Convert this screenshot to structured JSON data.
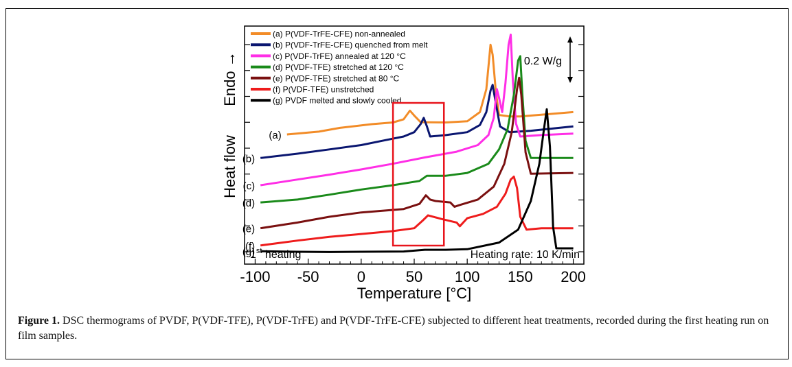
{
  "chart_data": {
    "type": "line",
    "xlabel": "Temperature [°C]",
    "ylabel": "Heat flow",
    "ylabel_arrow": "Endo →",
    "xlim": [
      -110,
      210
    ],
    "xticks": [
      -100,
      -50,
      0,
      50,
      100,
      150,
      200
    ],
    "y_tick_count": 9,
    "grid": false,
    "legend_position": "top-left",
    "scale_bar_label": "0.2 W/g",
    "scale_bar_value": 0.2,
    "annotation_left_main": "1",
    "annotation_left_sup": "st",
    "annotation_left_rest": " heating",
    "annotation_right": "Heating rate: 10 K/min",
    "highlight_box_x": [
      30,
      78
    ],
    "series": [
      {
        "name": "(a) P(VDF-TrFE-CFE) non-annealed",
        "tag": "(a)",
        "color": "#f28c28",
        "points": [
          [
            -70,
            7.82
          ],
          [
            -40,
            7.92
          ],
          [
            -20,
            8.05
          ],
          [
            10,
            8.18
          ],
          [
            30,
            8.24
          ],
          [
            40,
            8.35
          ],
          [
            46,
            8.65
          ],
          [
            50,
            8.48
          ],
          [
            56,
            8.25
          ],
          [
            80,
            8.24
          ],
          [
            100,
            8.28
          ],
          [
            112,
            8.6
          ],
          [
            118,
            9.4
          ],
          [
            122,
            10.95
          ],
          [
            124,
            10.6
          ],
          [
            127,
            9.3
          ],
          [
            130,
            8.5
          ],
          [
            140,
            8.45
          ],
          [
            150,
            8.45
          ],
          [
            200,
            8.6
          ]
        ]
      },
      {
        "name": "(b) P(VDF-TrFE-CFE) quenched from melt",
        "tag": "(b)",
        "color": "#0a1670",
        "points": [
          [
            -95,
            7.0
          ],
          [
            -60,
            7.15
          ],
          [
            -30,
            7.3
          ],
          [
            0,
            7.45
          ],
          [
            20,
            7.6
          ],
          [
            40,
            7.75
          ],
          [
            50,
            7.9
          ],
          [
            56,
            8.18
          ],
          [
            59,
            8.4
          ],
          [
            62,
            8.1
          ],
          [
            65,
            7.75
          ],
          [
            80,
            7.8
          ],
          [
            100,
            7.9
          ],
          [
            112,
            8.15
          ],
          [
            118,
            8.6
          ],
          [
            122,
            9.35
          ],
          [
            124,
            9.55
          ],
          [
            127,
            8.9
          ],
          [
            131,
            8.1
          ],
          [
            140,
            7.9
          ],
          [
            160,
            7.95
          ],
          [
            200,
            8.1
          ]
        ]
      },
      {
        "name": "(c) P(VDF-TrFE) annealed at 120 °C",
        "tag": "(c)",
        "color": "#ff2ee6",
        "points": [
          [
            -95,
            6.05
          ],
          [
            -60,
            6.25
          ],
          [
            -30,
            6.42
          ],
          [
            0,
            6.6
          ],
          [
            30,
            6.8
          ],
          [
            60,
            7.02
          ],
          [
            90,
            7.22
          ],
          [
            110,
            7.45
          ],
          [
            120,
            7.8
          ],
          [
            125,
            8.4
          ],
          [
            128,
            9.4
          ],
          [
            130,
            9.1
          ],
          [
            133,
            8.6
          ],
          [
            136,
            9.6
          ],
          [
            139,
            10.95
          ],
          [
            141,
            11.3
          ],
          [
            143,
            9.7
          ],
          [
            146,
            8.2
          ],
          [
            150,
            7.75
          ],
          [
            170,
            7.8
          ],
          [
            200,
            7.85
          ]
        ]
      },
      {
        "name": "(d) P(VDF-TFE) stretched at 120 °C",
        "tag": "(d)",
        "color": "#1a8a1a",
        "points": [
          [
            -95,
            5.45
          ],
          [
            -60,
            5.55
          ],
          [
            -30,
            5.72
          ],
          [
            0,
            5.9
          ],
          [
            30,
            6.05
          ],
          [
            55,
            6.2
          ],
          [
            62,
            6.38
          ],
          [
            80,
            6.38
          ],
          [
            100,
            6.48
          ],
          [
            120,
            6.8
          ],
          [
            130,
            7.3
          ],
          [
            138,
            8.0
          ],
          [
            144,
            9.2
          ],
          [
            148,
            10.4
          ],
          [
            150,
            10.55
          ],
          [
            152,
            9.2
          ],
          [
            155,
            7.6
          ],
          [
            160,
            7.0
          ],
          [
            200,
            7.0
          ]
        ]
      },
      {
        "name": "(e) P(VDF-TFE) stretched at 80 °C",
        "tag": "(e)",
        "color": "#7a1010",
        "points": [
          [
            -95,
            4.55
          ],
          [
            -60,
            4.75
          ],
          [
            -30,
            4.95
          ],
          [
            0,
            5.1
          ],
          [
            40,
            5.22
          ],
          [
            55,
            5.4
          ],
          [
            61,
            5.7
          ],
          [
            65,
            5.55
          ],
          [
            70,
            5.5
          ],
          [
            84,
            5.45
          ],
          [
            88,
            5.3
          ],
          [
            92,
            5.35
          ],
          [
            110,
            5.55
          ],
          [
            125,
            6.0
          ],
          [
            135,
            6.8
          ],
          [
            142,
            7.9
          ],
          [
            147,
            9.4
          ],
          [
            149,
            9.8
          ],
          [
            151,
            9.2
          ],
          [
            155,
            7.2
          ],
          [
            160,
            6.45
          ],
          [
            200,
            6.48
          ]
        ]
      },
      {
        "name": "(f) P(VDF-TFE) unstretched",
        "tag": "(f)",
        "color": "#ee1c1c",
        "points": [
          [
            -95,
            3.95
          ],
          [
            -60,
            4.12
          ],
          [
            -30,
            4.25
          ],
          [
            0,
            4.35
          ],
          [
            30,
            4.45
          ],
          [
            50,
            4.55
          ],
          [
            58,
            4.82
          ],
          [
            63,
            5.0
          ],
          [
            75,
            4.88
          ],
          [
            90,
            4.75
          ],
          [
            93,
            4.62
          ],
          [
            100,
            4.9
          ],
          [
            115,
            5.05
          ],
          [
            128,
            5.3
          ],
          [
            136,
            5.75
          ],
          [
            141,
            6.25
          ],
          [
            144,
            6.35
          ],
          [
            147,
            5.95
          ],
          [
            150,
            4.95
          ],
          [
            156,
            4.5
          ],
          [
            170,
            4.55
          ],
          [
            200,
            4.55
          ]
        ]
      },
      {
        "name": "(g) PVDF melted and slowly cooled",
        "tag": "(g)",
        "color": "#000000",
        "points": [
          [
            -95,
            3.75
          ],
          [
            -60,
            3.73
          ],
          [
            -30,
            3.72
          ],
          [
            0,
            3.73
          ],
          [
            40,
            3.74
          ],
          [
            60,
            3.8
          ],
          [
            80,
            3.8
          ],
          [
            100,
            3.82
          ],
          [
            130,
            4.05
          ],
          [
            148,
            4.5
          ],
          [
            160,
            5.5
          ],
          [
            168,
            6.8
          ],
          [
            172,
            7.9
          ],
          [
            175,
            8.7
          ],
          [
            178,
            7.4
          ],
          [
            181,
            4.6
          ],
          [
            184,
            3.85
          ],
          [
            200,
            3.85
          ]
        ]
      }
    ]
  },
  "caption": {
    "label": "Figure 1.",
    "text": " DSC thermograms of PVDF, P(VDF-TFE), P(VDF-TrFE) and P(VDF-TrFE-CFE) subjected to different heat treatments, recorded during the first heating run on film samples."
  }
}
